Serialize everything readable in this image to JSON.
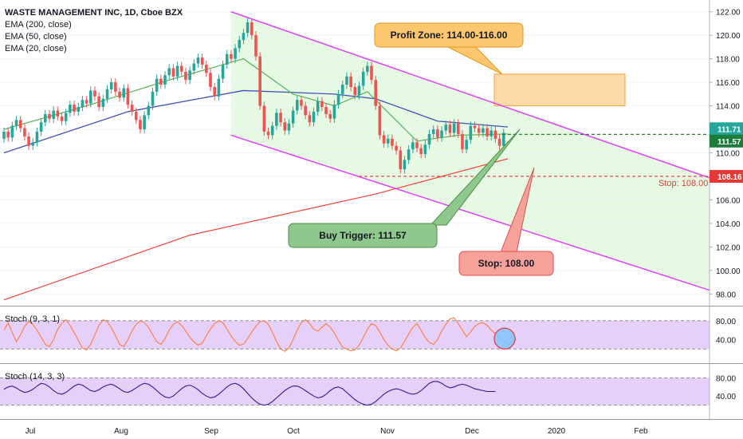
{
  "legend": {
    "title": "WASTE MANAGEMENT INC, 1D, Cboe BZX",
    "items": [
      "EMA (200, close)",
      "EMA (50, close)",
      "EMA (20, close)"
    ]
  },
  "stoch1_label": "Stoch (9, 3, 1)",
  "stoch2_label": "Stoch (14, 3, 3)",
  "annotations": {
    "profit": "Profit Zone: 114.00-116.00",
    "buy": "Buy Trigger: 111.57",
    "stop": "Stop: 108.00",
    "stop_line": "Stop: 108.00"
  },
  "price_tags": {
    "upper": "111.71",
    "lower": "111.57",
    "stop": "108.16"
  },
  "colors": {
    "up": "#26a69a",
    "down": "#ef5350",
    "magenta": "#e040fb",
    "ema200": "#f44336",
    "ema50": "#3f51b5",
    "ema20": "#4caf50",
    "channel_fill": "#e6f9e3",
    "profit_fill": "#fcd9a8",
    "stoch_band": "#e6cff8",
    "stoch_fast": "#ff7d3b",
    "stoch_slow": "#311b92"
  },
  "chart_data": {
    "type": "candlestick",
    "symbol": "WASTE MANAGEMENT INC",
    "interval": "1D",
    "exchange": "Cboe BZX",
    "x_ticks": [
      "Jul",
      "Aug",
      "Sep",
      "Oct",
      "Nov",
      "Dec",
      "2020",
      "Feb"
    ],
    "y_ticks": [
      98,
      100,
      102,
      104,
      106,
      108,
      110,
      112,
      114,
      116,
      118,
      120,
      122
    ],
    "ylim": [
      97,
      123
    ],
    "candles": [
      [
        111.2,
        111.8
      ],
      [
        111.8,
        111.3
      ],
      [
        111.3,
        112.3
      ],
      [
        112.3,
        112.8
      ],
      [
        112.8,
        112.1
      ],
      [
        112.1,
        111.4
      ],
      [
        111.4,
        110.6
      ],
      [
        110.6,
        110.9
      ],
      [
        110.9,
        111.8
      ],
      [
        111.8,
        112.6
      ],
      [
        112.6,
        113.3
      ],
      [
        113.3,
        112.9
      ],
      [
        112.9,
        113.6
      ],
      [
        113.6,
        113.1
      ],
      [
        113.1,
        112.7
      ],
      [
        112.7,
        113.4
      ],
      [
        113.4,
        114.1
      ],
      [
        114.1,
        113.5
      ],
      [
        113.5,
        113.9
      ],
      [
        113.9,
        114.5
      ],
      [
        114.5,
        114.2
      ],
      [
        114.2,
        115.3
      ],
      [
        115.3,
        114.8
      ],
      [
        114.8,
        113.9
      ],
      [
        113.9,
        114.6
      ],
      [
        114.6,
        115.4
      ],
      [
        115.4,
        116.0
      ],
      [
        116.0,
        115.2
      ],
      [
        115.2,
        114.7
      ],
      [
        114.7,
        115.5
      ],
      [
        115.5,
        114.1
      ],
      [
        114.1,
        113.5
      ],
      [
        113.5,
        112.8
      ],
      [
        112.8,
        112.0
      ],
      [
        112.0,
        113.2
      ],
      [
        113.2,
        114.0
      ],
      [
        114.0,
        115.2
      ],
      [
        115.2,
        116.3
      ],
      [
        116.3,
        115.8
      ],
      [
        115.8,
        116.6
      ],
      [
        116.6,
        117.2
      ],
      [
        117.2,
        116.5
      ],
      [
        116.5,
        117.4
      ],
      [
        117.4,
        116.9
      ],
      [
        116.9,
        116.2
      ],
      [
        116.2,
        117.0
      ],
      [
        117.0,
        117.6
      ],
      [
        117.6,
        118.1
      ],
      [
        118.1,
        117.5
      ],
      [
        117.5,
        116.8
      ],
      [
        116.8,
        115.6
      ],
      [
        115.6,
        114.8
      ],
      [
        114.8,
        116.3
      ],
      [
        116.3,
        117.5
      ],
      [
        117.5,
        118.4
      ],
      [
        118.4,
        118.0
      ],
      [
        118.0,
        118.9
      ],
      [
        118.9,
        119.6
      ],
      [
        119.6,
        120.2
      ],
      [
        120.2,
        121.1
      ],
      [
        121.1,
        120.0
      ],
      [
        120.0,
        118.2
      ],
      [
        118.2,
        114.0
      ],
      [
        114.0,
        111.8
      ],
      [
        111.8,
        111.5
      ],
      [
        111.5,
        112.3
      ],
      [
        112.3,
        113.4
      ],
      [
        113.4,
        112.6
      ],
      [
        112.6,
        111.9
      ],
      [
        111.9,
        112.5
      ],
      [
        112.5,
        113.6
      ],
      [
        113.6,
        114.5
      ],
      [
        114.5,
        114.0
      ],
      [
        114.0,
        113.2
      ],
      [
        113.2,
        112.6
      ],
      [
        112.6,
        113.5
      ],
      [
        113.5,
        114.4
      ],
      [
        114.4,
        113.9
      ],
      [
        113.9,
        113.3
      ],
      [
        113.3,
        112.9
      ],
      [
        112.9,
        114.1
      ],
      [
        114.1,
        115.0
      ],
      [
        115.0,
        115.8
      ],
      [
        115.8,
        116.5
      ],
      [
        116.5,
        115.6
      ],
      [
        115.6,
        114.9
      ],
      [
        114.9,
        115.7
      ],
      [
        115.7,
        116.9
      ],
      [
        116.9,
        117.4
      ],
      [
        117.4,
        116.2
      ],
      [
        116.2,
        114.0
      ],
      [
        114.0,
        111.5
      ],
      [
        111.5,
        110.8
      ],
      [
        110.8,
        111.2
      ],
      [
        111.2,
        110.6
      ],
      [
        110.6,
        110.2
      ],
      [
        110.2,
        108.6
      ],
      [
        108.6,
        109.4
      ],
      [
        109.4,
        110.3
      ],
      [
        110.3,
        110.9
      ],
      [
        110.9,
        110.4
      ],
      [
        110.4,
        109.9
      ],
      [
        109.9,
        110.7
      ],
      [
        110.7,
        111.6
      ],
      [
        111.6,
        112.0
      ],
      [
        112.0,
        111.3
      ],
      [
        111.3,
        111.9
      ],
      [
        111.9,
        112.4
      ],
      [
        112.4,
        111.7
      ],
      [
        111.7,
        112.5
      ],
      [
        112.5,
        111.6
      ],
      [
        111.6,
        110.3
      ],
      [
        110.3,
        111.1
      ],
      [
        111.1,
        112.3
      ],
      [
        112.3,
        112.1
      ],
      [
        112.1,
        111.7
      ],
      [
        111.7,
        112.1
      ],
      [
        112.1,
        111.4
      ],
      [
        111.4,
        111.9
      ],
      [
        111.9,
        111.2
      ],
      [
        111.2,
        110.6
      ],
      [
        110.6,
        111.71
      ]
    ],
    "ema200": [
      [
        0,
        97.5
      ],
      [
        45,
        103.0
      ],
      [
        90,
        106.5
      ],
      [
        122,
        109.5
      ]
    ],
    "ema50": [
      [
        0,
        110.0
      ],
      [
        30,
        113.5
      ],
      [
        58,
        115.3
      ],
      [
        80,
        115.0
      ],
      [
        90,
        114.6
      ],
      [
        105,
        112.7
      ],
      [
        122,
        112.2
      ]
    ],
    "ema20": [
      [
        0,
        112.0
      ],
      [
        20,
        114.0
      ],
      [
        40,
        116.2
      ],
      [
        58,
        118.0
      ],
      [
        70,
        115.0
      ],
      [
        80,
        114.0
      ],
      [
        88,
        115.2
      ],
      [
        100,
        111.0
      ],
      [
        110,
        111.5
      ],
      [
        122,
        111.6
      ]
    ],
    "channel_upper": [
      [
        55,
        122.0
      ],
      [
        178,
        107.0
      ]
    ],
    "channel_lower": [
      [
        55,
        111.5
      ],
      [
        178,
        97.5
      ]
    ],
    "levels": {
      "buy_trigger": 111.57,
      "stop": 108.0,
      "profit_zone": [
        114.0,
        116.0
      ]
    },
    "stoch_fast": {
      "name": "Stoch (9, 3, 1)",
      "y_ticks": [
        40,
        80
      ],
      "band": [
        20,
        80
      ],
      "values": [
        60,
        75,
        55,
        35,
        50,
        68,
        78,
        72,
        60,
        45,
        30,
        25,
        40,
        62,
        74,
        82,
        70,
        55,
        38,
        22,
        18,
        30,
        50,
        70,
        82,
        78,
        65,
        48,
        30,
        25,
        40,
        58,
        72,
        80,
        76,
        66,
        50,
        35,
        30,
        42,
        60,
        72,
        78,
        70,
        58,
        45,
        35,
        28,
        32,
        48,
        62,
        74,
        80,
        76,
        62,
        48,
        36,
        28,
        30,
        42,
        56,
        68,
        78,
        80,
        72,
        55,
        36,
        20,
        15,
        22,
        40,
        60,
        76,
        82,
        74,
        62,
        58,
        66,
        74,
        66,
        54,
        38,
        24,
        20,
        16,
        18,
        28,
        44,
        62,
        74,
        70,
        56,
        40,
        28,
        20,
        16,
        22,
        36,
        52,
        66,
        74,
        60,
        44,
        34,
        30,
        40,
        58,
        72,
        84,
        86,
        74,
        60,
        46,
        56,
        68,
        74,
        76,
        70,
        60,
        52,
        44,
        38,
        30,
        34,
        40
      ]
    },
    "stoch_slow": {
      "name": "Stoch (14, 3, 3)",
      "y_ticks": [
        40,
        80
      ],
      "band": [
        20,
        80
      ],
      "values": [
        55,
        60,
        62,
        58,
        52,
        48,
        50,
        55,
        62,
        68,
        66,
        60,
        52,
        46,
        44,
        48,
        55,
        62,
        66,
        64,
        58,
        52,
        50,
        54,
        60,
        64,
        66,
        62,
        56,
        50,
        48,
        52,
        58,
        64,
        68,
        66,
        60,
        52,
        44,
        38,
        36,
        40,
        48,
        56,
        62,
        64,
        60,
        54,
        46,
        40,
        36,
        38,
        44,
        52,
        60,
        66,
        68,
        64,
        56,
        46,
        36,
        28,
        22,
        20,
        22,
        28,
        36,
        44,
        52,
        58,
        62,
        62,
        58,
        52,
        46,
        40,
        36,
        38,
        44,
        52,
        58,
        60,
        56,
        48,
        40,
        32,
        26,
        22,
        20,
        22,
        28,
        36,
        44,
        50,
        54,
        56,
        54,
        50,
        46,
        44,
        46,
        52,
        60,
        68,
        72,
        72,
        68,
        62,
        58,
        60,
        64,
        66,
        64,
        60,
        56,
        54,
        52,
        50,
        50,
        50
      ]
    }
  }
}
